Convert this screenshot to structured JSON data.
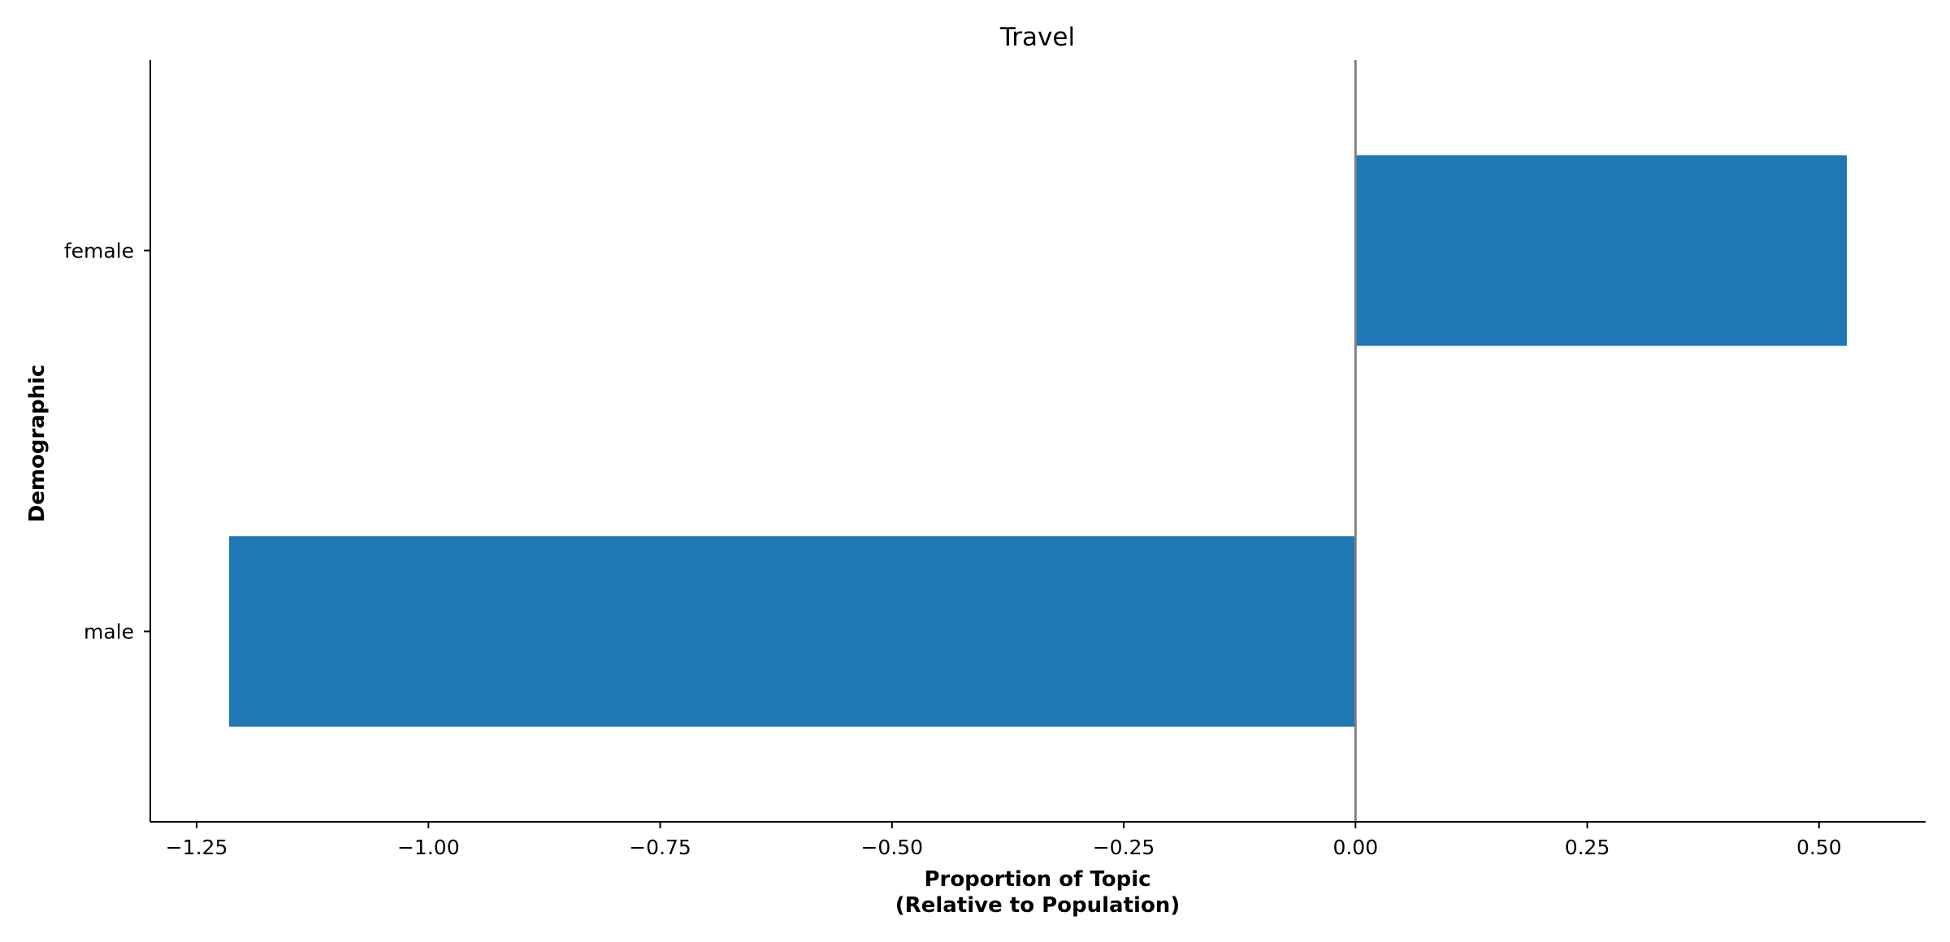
{
  "chart_data": {
    "type": "bar",
    "orientation": "horizontal",
    "title": "Travel",
    "xlabel_lines": [
      "Proportion of Topic",
      "(Relative to Population)"
    ],
    "ylabel": "Demographic",
    "categories": [
      "female",
      "male"
    ],
    "values": [
      0.53,
      -1.215
    ],
    "xlim": [
      -1.3,
      0.615
    ],
    "xticks": [
      -1.25,
      -1.0,
      -0.75,
      -0.5,
      -0.25,
      0.0,
      0.25,
      0.5
    ],
    "xtick_labels": [
      "−1.25",
      "−1.00",
      "−0.75",
      "−0.50",
      "−0.25",
      "0.00",
      "0.25",
      "0.50"
    ],
    "grid": false,
    "legend": "none",
    "bar_color": "#1f77b4",
    "zero_line_color": "#808080"
  }
}
